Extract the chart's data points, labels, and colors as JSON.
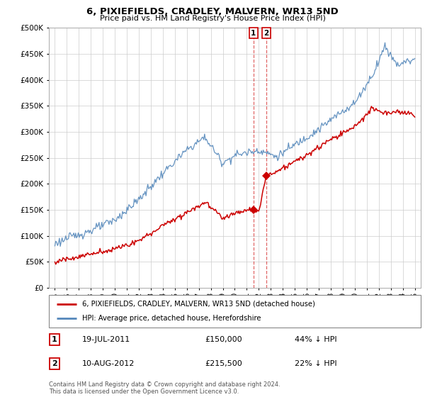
{
  "title": "6, PIXIEFIELDS, CRADLEY, MALVERN, WR13 5ND",
  "subtitle": "Price paid vs. HM Land Registry's House Price Index (HPI)",
  "legend_line1": "6, PIXIEFIELDS, CRADLEY, MALVERN, WR13 5ND (detached house)",
  "legend_line2": "HPI: Average price, detached house, Herefordshire",
  "transaction1_date": "19-JUL-2011",
  "transaction1_price": "£150,000",
  "transaction1_hpi": "44% ↓ HPI",
  "transaction1_year": 2011.55,
  "transaction1_value": 150000,
  "transaction2_date": "10-AUG-2012",
  "transaction2_price": "£215,500",
  "transaction2_hpi": "22% ↓ HPI",
  "transaction2_year": 2012.62,
  "transaction2_value": 215500,
  "footnote": "Contains HM Land Registry data © Crown copyright and database right 2024.\nThis data is licensed under the Open Government Licence v3.0.",
  "red_color": "#cc0000",
  "blue_color": "#5588bb",
  "vline_color": "#cc0000",
  "grid_color": "#cccccc",
  "ylim": [
    0,
    500000
  ],
  "yticks": [
    0,
    50000,
    100000,
    150000,
    200000,
    250000,
    300000,
    350000,
    400000,
    450000,
    500000
  ],
  "xlim_left": 1994.5,
  "xlim_right": 2025.5
}
